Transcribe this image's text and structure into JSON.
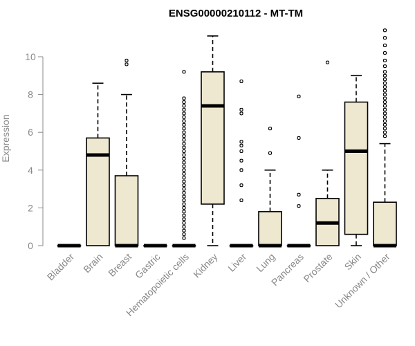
{
  "chart_data": {
    "type": "boxplot",
    "title": "ENSG00000210112 - MT-TM",
    "ylabel": "Expression",
    "xlabel": "",
    "ylim": [
      0,
      11.5
    ],
    "yticks": [
      0,
      2,
      4,
      6,
      8,
      10
    ],
    "box_fill": "#EEE8D0",
    "categories": [
      "Bladder",
      "Brain",
      "Breast",
      "Gastric",
      "Hematopoietic cells",
      "Kidney",
      "Liver",
      "Lung",
      "Pancreas",
      "Prostate",
      "Skin",
      "Unknown / Other"
    ],
    "boxes": [
      {
        "category": "Bladder",
        "min": 0,
        "q1": 0,
        "median": 0,
        "q3": 0,
        "max": 0,
        "outliers": []
      },
      {
        "category": "Brain",
        "min": 0,
        "q1": 0,
        "median": 4.8,
        "q3": 5.7,
        "max": 8.6,
        "outliers": []
      },
      {
        "category": "Breast",
        "min": 0,
        "q1": 0,
        "median": 0,
        "q3": 3.7,
        "max": 8.0,
        "outliers": [
          9.6,
          9.8
        ]
      },
      {
        "category": "Gastric",
        "min": 0,
        "q1": 0,
        "median": 0,
        "q3": 0,
        "max": 0,
        "outliers": []
      },
      {
        "category": "Hematopoietic cells",
        "min": 0,
        "q1": 0,
        "median": 0,
        "q3": 0,
        "max": 0,
        "outliers": [
          9.2,
          7.8,
          7.6,
          7.4,
          7.2,
          7.0,
          6.8,
          6.6,
          6.4,
          6.2,
          6.0,
          5.8,
          5.6,
          5.4,
          5.2,
          5.0,
          4.8,
          4.6,
          4.4,
          4.2,
          4.0,
          3.8,
          3.6,
          3.4,
          3.2,
          3.0,
          2.8,
          2.6,
          2.4,
          2.2,
          2.0,
          1.8,
          1.6,
          1.4,
          1.2,
          1.0,
          0.8,
          0.6,
          0.4
        ]
      },
      {
        "category": "Kidney",
        "min": 0,
        "q1": 2.2,
        "median": 7.4,
        "q3": 9.2,
        "max": 11.1,
        "outliers": []
      },
      {
        "category": "Liver",
        "min": 0,
        "q1": 0,
        "median": 0,
        "q3": 0,
        "max": 0,
        "outliers": [
          8.7,
          7.2,
          7.0,
          5.5,
          5.3,
          5.0,
          4.5,
          4.0,
          3.2,
          2.4
        ]
      },
      {
        "category": "Lung",
        "min": 0,
        "q1": 0,
        "median": 0,
        "q3": 1.8,
        "max": 4.0,
        "outliers": [
          6.2,
          4.9
        ]
      },
      {
        "category": "Pancreas",
        "min": 0,
        "q1": 0,
        "median": 0,
        "q3": 0,
        "max": 0,
        "outliers": [
          7.9,
          5.7,
          2.7,
          2.1
        ]
      },
      {
        "category": "Prostate",
        "min": 0,
        "q1": 0,
        "median": 1.2,
        "q3": 2.5,
        "max": 4.0,
        "outliers": [
          9.7
        ]
      },
      {
        "category": "Skin",
        "min": 0,
        "q1": 0.6,
        "median": 5.0,
        "q3": 7.6,
        "max": 9.0,
        "outliers": []
      },
      {
        "category": "Unknown / Other",
        "min": 0,
        "q1": 0,
        "median": 0,
        "q3": 2.3,
        "max": 5.4,
        "outliers": [
          11.4,
          11.0,
          10.6,
          10.2,
          9.8,
          9.5,
          9.2,
          9.0,
          8.8,
          8.6,
          8.4,
          8.2,
          8.0,
          7.8,
          7.6,
          7.4,
          7.2,
          7.0,
          6.8,
          6.6,
          6.4,
          6.2,
          6.0,
          5.8
        ]
      }
    ]
  }
}
